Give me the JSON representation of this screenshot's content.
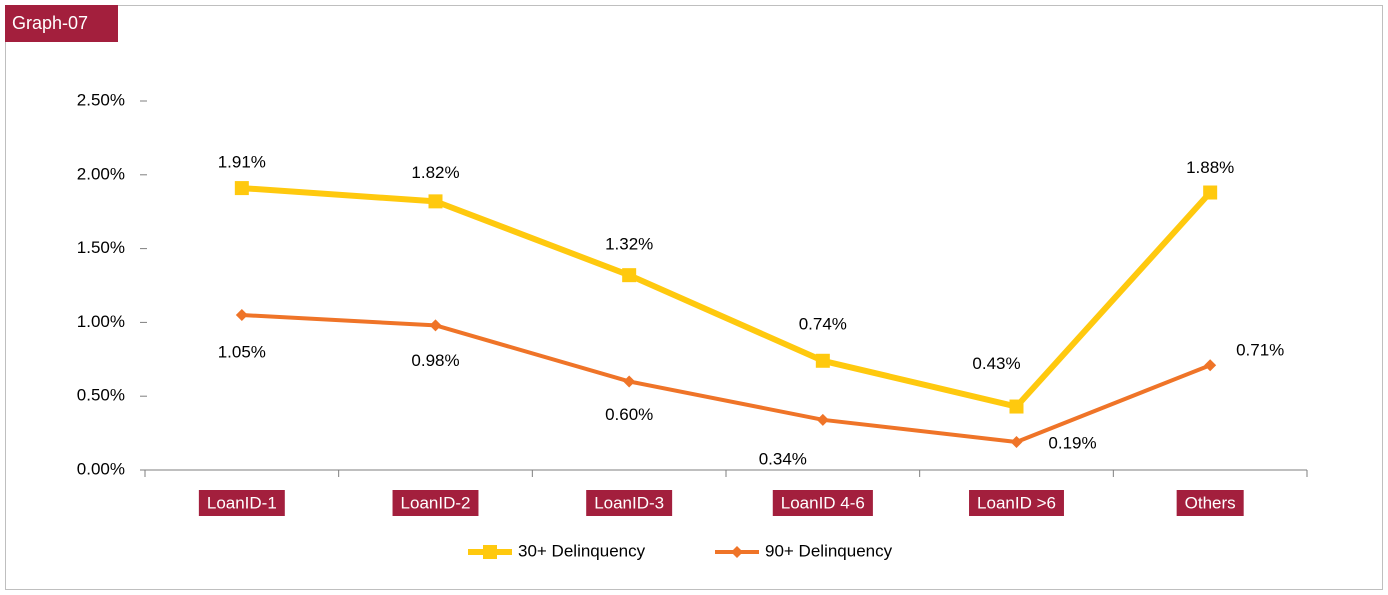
{
  "chart_data": {
    "type": "line",
    "title": "Graph-07",
    "categories": [
      "LoanID-1",
      "LoanID-2",
      "LoanID-3",
      "LoanID 4-6",
      "LoanID >6",
      "Others"
    ],
    "series": [
      {
        "name": "30+ Delinquency",
        "color": "#ffc90e",
        "values": [
          1.91,
          1.82,
          1.32,
          0.74,
          0.43,
          1.88
        ],
        "value_labels": [
          "1.91%",
          "1.82%",
          "1.32%",
          "0.74%",
          "0.43%",
          "1.88%"
        ]
      },
      {
        "name": "90+ Delinquency",
        "color": "#ef7428",
        "values": [
          1.05,
          0.98,
          0.6,
          0.34,
          0.19,
          0.71
        ],
        "value_labels": [
          "1.05%",
          "0.98%",
          "0.60%",
          "0.34%",
          "0.19%",
          "0.71%"
        ]
      }
    ],
    "ylim": [
      0,
      2.5
    ],
    "yticks": [
      {
        "value": 0,
        "label": "0.00%"
      },
      {
        "value": 0.5,
        "label": "0.50%"
      },
      {
        "value": 1,
        "label": "1.00%"
      },
      {
        "value": 1.5,
        "label": "1.50%"
      },
      {
        "value": 2,
        "label": "2.00%"
      },
      {
        "value": 2.5,
        "label": "2.50%"
      }
    ],
    "grid": false,
    "legend": "bottom"
  }
}
